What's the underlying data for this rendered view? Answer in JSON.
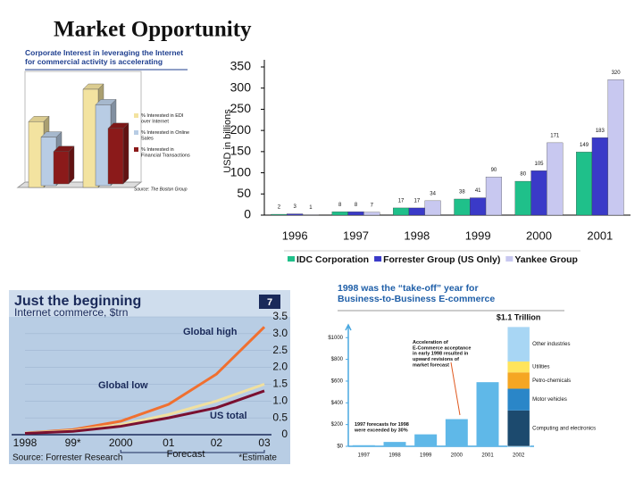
{
  "title": "Market Opportunity",
  "chart_data": [
    {
      "type": "bar3d",
      "title": "Corporate Interest in leveraging the Internet for commercial activity is accelerating",
      "categories": [
        null,
        null
      ],
      "series": [
        {
          "name": "% Interested in EDI over Internet",
          "color": "#f3e3a0",
          "values": [
            57,
            85
          ]
        },
        {
          "name": "% Interested in Online Sales",
          "color": "#b8cce4",
          "values": [
            42,
            70
          ]
        },
        {
          "name": "% Interested in Financial Transactions",
          "color": "#8b1a1a",
          "values": [
            28,
            48
          ]
        }
      ],
      "source": "Source: The Boston Group"
    },
    {
      "type": "bar",
      "y_label": "USD in billions",
      "categories": [
        "1996",
        "1997",
        "1998",
        "1999",
        "2000",
        "2001"
      ],
      "series": [
        {
          "name": "IDC Corporation",
          "color": "#1fc08a",
          "values": [
            2,
            8,
            17,
            38,
            80,
            149
          ]
        },
        {
          "name": "Forrester Group (US Only)",
          "color": "#3a3ac8",
          "values": [
            3,
            8,
            17,
            41,
            105,
            183
          ]
        },
        {
          "name": "Yankee Group",
          "color": "#c8c8f0",
          "values": [
            1,
            7,
            34,
            90,
            171,
            320
          ]
        }
      ],
      "ylim": [
        0,
        350
      ],
      "yticks": [
        0,
        50,
        100,
        150,
        200,
        250,
        300,
        350
      ],
      "legend": "bottom"
    },
    {
      "type": "line",
      "title": "Just the beginning",
      "subtitle": "Internet commerce, $trn",
      "badge": "7",
      "categories": [
        "1998",
        "99*",
        "2000",
        "01",
        "02",
        "03"
      ],
      "series": [
        {
          "name": "Global high",
          "color": "#f07030",
          "values": [
            0.05,
            0.15,
            0.4,
            0.9,
            1.8,
            3.2
          ]
        },
        {
          "name": "Global low",
          "color": "#f0e0a0",
          "values": [
            0.05,
            0.12,
            0.3,
            0.6,
            1.0,
            1.5
          ]
        },
        {
          "name": "US total",
          "color": "#7a1030",
          "values": [
            0.04,
            0.1,
            0.25,
            0.5,
            0.8,
            1.3
          ]
        }
      ],
      "ylim": [
        0,
        3.5
      ],
      "yticks": [
        0,
        0.5,
        {
          "value": 1,
          "label": "1.0"
        },
        1.5,
        {
          "value": 2,
          "label": "2.0"
        },
        2.5,
        {
          "value": 3,
          "label": "3.0"
        },
        3.5
      ],
      "annotations": [
        "Forecast",
        "*Estimate"
      ],
      "source": "Source: Forrester Research"
    },
    {
      "type": "bar",
      "title": "1998 was the “take-off” year for Business-to-Business E-commerce",
      "categories": [
        "1997",
        "1998",
        "1999",
        "2000",
        "2001",
        "2002"
      ],
      "values": [
        10,
        40,
        110,
        250,
        590,
        1100
      ],
      "value_labels": [
        null,
        null,
        null,
        null,
        null,
        "$1.1 Trillion"
      ],
      "color": "#5fb8e8",
      "stack": {
        "segments": [
          {
            "name": "Computing and electronics",
            "color": "#1c4a6e",
            "value": 330
          },
          {
            "name": "Motor vehicles",
            "color": "#2a86c8",
            "value": 200
          },
          {
            "name": "Petro-chemicals",
            "color": "#f5a623",
            "value": 150
          },
          {
            "name": "Utilities",
            "color": "#ffe45c",
            "value": 100
          },
          {
            "name": "Other industries",
            "color": "#a8d6f4",
            "value": 320
          }
        ]
      },
      "ylim": [
        0,
        1150
      ],
      "yticks": [
        {
          "value": 0,
          "label": "$0"
        },
        {
          "value": 200,
          "label": "$200"
        },
        {
          "value": 400,
          "label": "$400"
        },
        {
          "value": 600,
          "label": "$600"
        },
        {
          "value": 800,
          "label": "$800"
        },
        {
          "value": 1000,
          "label": "$1000"
        }
      ],
      "annotations": [
        "Acceleration of E-Commerce acceptance in early 1998 resulted in upward revisions of market forecast",
        "1997 forecasts for 1998 were exceeded by 30%"
      ]
    }
  ]
}
